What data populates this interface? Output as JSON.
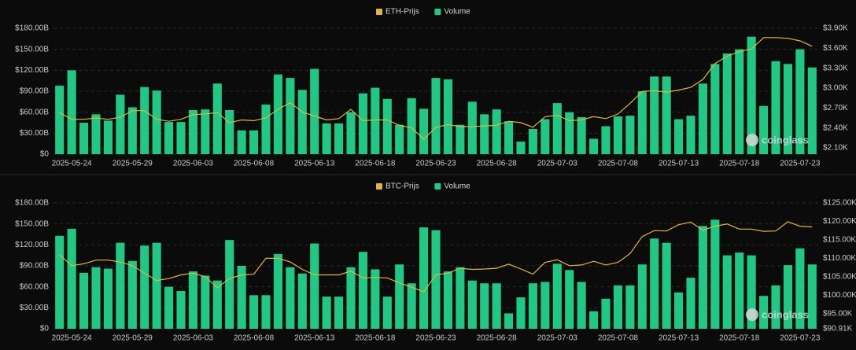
{
  "chart_data": [
    {
      "type": "combo",
      "watermark": "coinglass",
      "categories": [
        null,
        "2025-05-24",
        null,
        null,
        null,
        null,
        "2025-05-29",
        null,
        null,
        null,
        null,
        "2025-06-03",
        null,
        null,
        null,
        null,
        "2025-06-08",
        null,
        null,
        null,
        null,
        "2025-06-13",
        null,
        null,
        null,
        null,
        "2025-06-18",
        null,
        null,
        null,
        null,
        "2025-06-23",
        null,
        null,
        null,
        null,
        "2025-06-28",
        null,
        null,
        null,
        null,
        "2025-07-03",
        null,
        null,
        null,
        null,
        "2025-07-08",
        null,
        null,
        null,
        null,
        "2025-07-13",
        null,
        null,
        null,
        null,
        "2025-07-18",
        null,
        null,
        null,
        null,
        "2025-07-23",
        null
      ],
      "series": [
        {
          "name": "ETH-Prijs",
          "type": "line",
          "axis": "y2",
          "color": "#e3b53a",
          "values": [
            2630,
            2530,
            2530,
            2550,
            2530,
            2560,
            2660,
            2660,
            2530,
            2500,
            2530,
            2600,
            2610,
            2630,
            2480,
            2520,
            2510,
            2550,
            2680,
            2780,
            2640,
            2580,
            2520,
            2540,
            2680,
            2510,
            2520,
            2520,
            2440,
            2400,
            2230,
            2410,
            2450,
            2420,
            2420,
            2430,
            2440,
            2500,
            2480,
            2410,
            2570,
            2590,
            2510,
            2520,
            2570,
            2540,
            2610,
            2770,
            2950,
            2960,
            2940,
            2970,
            3010,
            3130,
            3370,
            3480,
            3550,
            3590,
            3760,
            3760,
            3750,
            3710,
            3630
          ]
        },
        {
          "name": "Volume",
          "type": "bar",
          "color": "#1fc983",
          "values": [
            98,
            120,
            45,
            57,
            48,
            85,
            67,
            96,
            91,
            46,
            46,
            63,
            64,
            101,
            63,
            34,
            34,
            71,
            114,
            109,
            92,
            122,
            44,
            44,
            60,
            87,
            95,
            79,
            42,
            80,
            65,
            109,
            107,
            42,
            75,
            57,
            64,
            47,
            18,
            36,
            50,
            73,
            60,
            53,
            22,
            40,
            54,
            55,
            90,
            111,
            111,
            50,
            55,
            101,
            129,
            144,
            150,
            168,
            69,
            133,
            129,
            150,
            124
          ]
        }
      ],
      "ylim": [
        0,
        180
      ],
      "yticks": [
        {
          "value": 0,
          "label": "$0"
        },
        {
          "value": 30,
          "label": "$30.00B"
        },
        {
          "value": 60,
          "label": "$60.00B"
        },
        {
          "value": 90,
          "label": "$90.00B"
        },
        {
          "value": 120,
          "label": "$120.00B"
        },
        {
          "value": 150,
          "label": "$150.00B"
        },
        {
          "value": 180,
          "label": "$180.00B"
        }
      ],
      "y2lim": [
        2005,
        3900
      ],
      "y2ticks": [
        {
          "value": 2100,
          "label": "$2.10K"
        },
        {
          "value": 2400,
          "label": "$2.40K"
        },
        {
          "value": 2700,
          "label": "$2.70K"
        },
        {
          "value": 3000,
          "label": "$3.00K"
        },
        {
          "value": 3300,
          "label": "$3.30K"
        },
        {
          "value": 3600,
          "label": "$3.60K"
        },
        {
          "value": 3900,
          "label": "$3.90K"
        }
      ],
      "grid": true
    },
    {
      "type": "combo",
      "watermark": "coinglass",
      "categories": [
        null,
        "2025-05-24",
        null,
        null,
        null,
        null,
        "2025-05-29",
        null,
        null,
        null,
        null,
        "2025-06-03",
        null,
        null,
        null,
        null,
        "2025-06-08",
        null,
        null,
        null,
        null,
        "2025-06-13",
        null,
        null,
        null,
        null,
        "2025-06-18",
        null,
        null,
        null,
        null,
        "2025-06-23",
        null,
        null,
        null,
        null,
        "2025-06-28",
        null,
        null,
        null,
        null,
        "2025-07-03",
        null,
        null,
        null,
        null,
        "2025-07-08",
        null,
        null,
        null,
        null,
        "2025-07-13",
        null,
        null,
        null,
        null,
        "2025-07-18",
        null,
        null,
        null,
        null,
        "2025-07-23",
        null
      ],
      "series": [
        {
          "name": "BTC-Prijs",
          "type": "line",
          "axis": "y2",
          "color": "#e3b53a",
          "values": [
            111000,
            108000,
            108500,
            109500,
            109500,
            109000,
            108000,
            106000,
            104000,
            104500,
            105500,
            106000,
            105000,
            102000,
            104500,
            105500,
            105700,
            110000,
            110000,
            109000,
            107000,
            105500,
            105500,
            105500,
            106500,
            104700,
            104800,
            104700,
            103300,
            102200,
            100900,
            105500,
            106000,
            107300,
            107000,
            107100,
            107300,
            108400,
            107100,
            105700,
            108900,
            109600,
            108000,
            108200,
            109200,
            108200,
            108900,
            111300,
            115900,
            117500,
            117400,
            119100,
            119800,
            117600,
            118700,
            119300,
            117900,
            117900,
            117300,
            117400,
            119900,
            118700,
            118500
          ]
        },
        {
          "name": "Volume",
          "type": "bar",
          "color": "#1fc983",
          "values": [
            133,
            143,
            80,
            88,
            86,
            123,
            97,
            119,
            123,
            60,
            54,
            82,
            76,
            69,
            127,
            90,
            48,
            48,
            107,
            88,
            79,
            122,
            46,
            46,
            88,
            110,
            85,
            46,
            92,
            65,
            145,
            141,
            82,
            88,
            69,
            65,
            65,
            22,
            45,
            65,
            67,
            93,
            84,
            67,
            25,
            43,
            62,
            62,
            92,
            129,
            123,
            52,
            73,
            147,
            156,
            105,
            109,
            105,
            47,
            62,
            91,
            115,
            92
          ]
        }
      ],
      "ylim": [
        0,
        180
      ],
      "yticks": [
        {
          "value": 0,
          "label": "$0"
        },
        {
          "value": 30,
          "label": "$30.00B"
        },
        {
          "value": 60,
          "label": "$60.00B"
        },
        {
          "value": 90,
          "label": "$90.00B"
        },
        {
          "value": 120,
          "label": "$120.00B"
        },
        {
          "value": 150,
          "label": "$150.00B"
        },
        {
          "value": 180,
          "label": "$180.00B"
        }
      ],
      "y2lim": [
        90910,
        125000
      ],
      "y2ticks": [
        {
          "value": 90910,
          "label": "$90.91K"
        },
        {
          "value": 95000,
          "label": "$95.00K"
        },
        {
          "value": 100000,
          "label": "$100.00K"
        },
        {
          "value": 105000,
          "label": "$105.00K"
        },
        {
          "value": 110000,
          "label": "$110.00K"
        },
        {
          "value": 115000,
          "label": "$115.00K"
        },
        {
          "value": 120000,
          "label": "$120.00K"
        },
        {
          "value": 125000,
          "label": "$125.00K"
        }
      ],
      "grid": true
    }
  ]
}
